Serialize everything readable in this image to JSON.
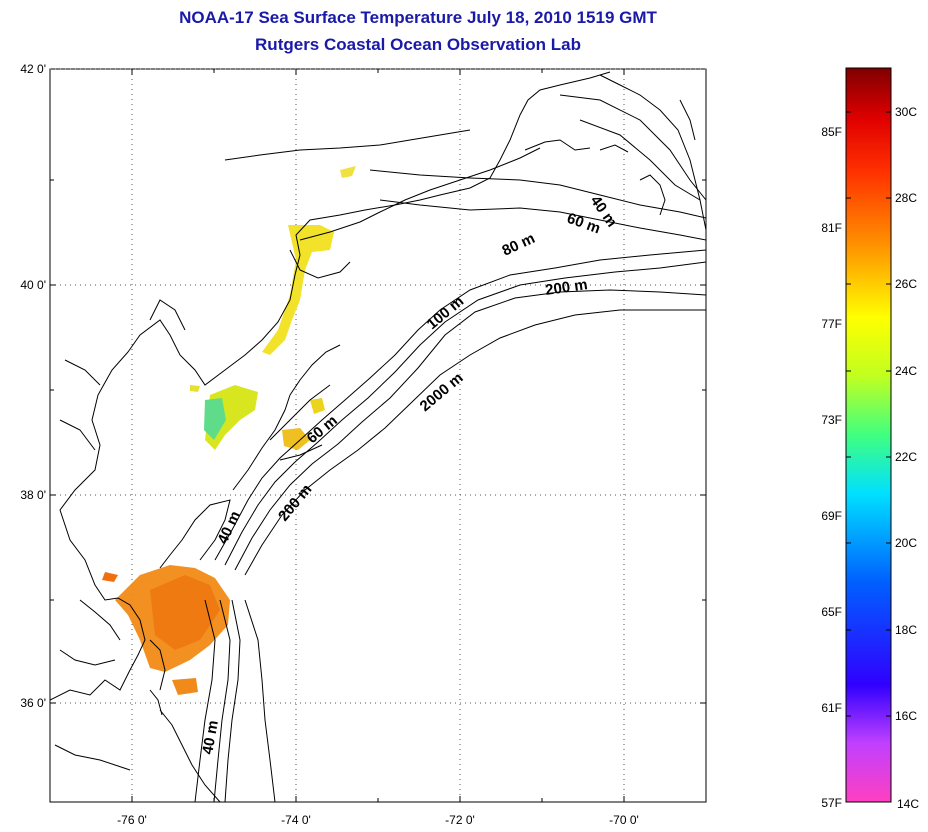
{
  "title_line1": "NOAA-17 Sea Surface Temperature July 18, 2010 1519 GMT",
  "title_line2": "Rutgers Coastal Ocean Observation Lab",
  "map": {
    "lon_labels": [
      "-76 0'",
      "-74 0'",
      "-72 0'",
      "-70 0'"
    ],
    "lat_labels": [
      "42 0'",
      "40 0'",
      "38 0'",
      "36 0'"
    ],
    "lon_range": [
      -77,
      -69
    ],
    "lat_range": [
      35,
      42
    ],
    "depth_labels": [
      "40 m",
      "60 m",
      "80 m",
      "200 m",
      "100 m",
      "2000 m",
      "60 m",
      "200 m",
      "40 m",
      "40 m"
    ]
  },
  "colorbar": {
    "fahrenheit_labels": [
      "85F",
      "81F",
      "77F",
      "73F",
      "69F",
      "65F",
      "61F",
      "57F"
    ],
    "celsius_labels": [
      "30C",
      "28C",
      "26C",
      "24C",
      "22C",
      "20C",
      "18C",
      "16C",
      "14C"
    ],
    "colors": [
      "#ff40c0",
      "#c040ff",
      "#8020e0",
      "#0000ff",
      "#0080ff",
      "#00ffff",
      "#40ff80",
      "#c0ff20",
      "#ffff00",
      "#ffc000",
      "#ff8000",
      "#ff4000",
      "#ff0000",
      "#c00000",
      "#800000"
    ]
  }
}
